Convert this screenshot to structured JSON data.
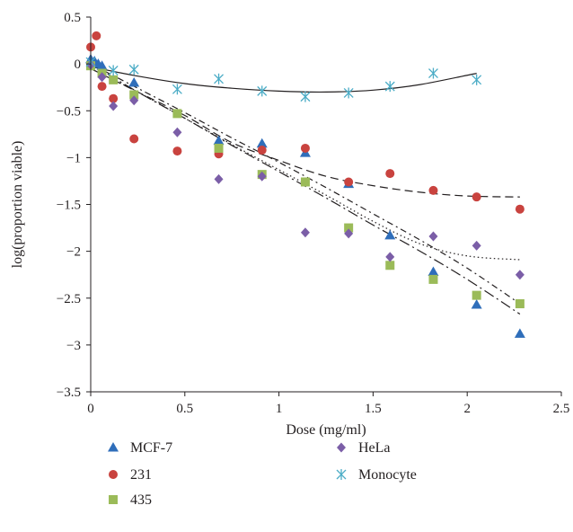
{
  "chart_data": {
    "type": "scatter",
    "title": "",
    "xlabel": "Dose (mg/ml)",
    "ylabel": "log(proportion viable)",
    "xlim": [
      0,
      2.5
    ],
    "ylim": [
      -3.5,
      0.5
    ],
    "xticks": [
      0,
      0.5,
      1,
      1.5,
      2,
      2.5
    ],
    "xtick_labels": [
      "0",
      "0.5",
      "1",
      "1.5",
      "2",
      "2.5"
    ],
    "yticks": [
      0.5,
      0,
      -0.5,
      -1,
      -1.5,
      -2,
      -2.5,
      -3,
      -3.5
    ],
    "ytick_labels": [
      "0.5",
      "0",
      "−0.5",
      "−1",
      "−1.5",
      "−2",
      "−2.5",
      "−3",
      "−3.5"
    ],
    "grid": false,
    "legend_position": "bottom",
    "series": [
      {
        "name": "MCF-7",
        "marker": "triangle",
        "color": "#2f6eba",
        "points": [
          [
            0,
            0.05
          ],
          [
            0.02,
            0.03
          ],
          [
            0.04,
            0.0
          ],
          [
            0.06,
            -0.02
          ],
          [
            0.23,
            -0.2
          ],
          [
            0.68,
            -0.82
          ],
          [
            0.91,
            -0.85
          ],
          [
            1.14,
            -0.95
          ],
          [
            1.37,
            -1.28
          ],
          [
            1.59,
            -1.83
          ],
          [
            1.82,
            -2.22
          ],
          [
            2.05,
            -2.57
          ],
          [
            2.28,
            -2.88
          ]
        ]
      },
      {
        "name": "231",
        "marker": "circle",
        "color": "#c9433f",
        "points": [
          [
            0,
            0.18
          ],
          [
            0.03,
            0.3
          ],
          [
            0.06,
            -0.24
          ],
          [
            0.12,
            -0.37
          ],
          [
            0.23,
            -0.8
          ],
          [
            0.46,
            -0.93
          ],
          [
            0.68,
            -0.96
          ],
          [
            0.91,
            -0.92
          ],
          [
            1.14,
            -0.9
          ],
          [
            1.37,
            -1.26
          ],
          [
            1.59,
            -1.17
          ],
          [
            1.82,
            -1.35
          ],
          [
            2.05,
            -1.42
          ],
          [
            2.28,
            -1.55
          ]
        ]
      },
      {
        "name": "435",
        "marker": "square",
        "color": "#9bbb59",
        "points": [
          [
            0,
            -0.02
          ],
          [
            0.06,
            -0.1
          ],
          [
            0.12,
            -0.17
          ],
          [
            0.23,
            -0.33
          ],
          [
            0.46,
            -0.53
          ],
          [
            0.68,
            -0.9
          ],
          [
            0.91,
            -1.18
          ],
          [
            1.14,
            -1.26
          ],
          [
            1.37,
            -1.75
          ],
          [
            1.59,
            -2.15
          ],
          [
            1.82,
            -2.3
          ],
          [
            2.05,
            -2.47
          ],
          [
            2.28,
            -2.56
          ]
        ]
      },
      {
        "name": "HeLa",
        "marker": "diamond",
        "color": "#7b5ea7",
        "points": [
          [
            0,
            -0.01
          ],
          [
            0.06,
            -0.14
          ],
          [
            0.12,
            -0.45
          ],
          [
            0.23,
            -0.39
          ],
          [
            0.46,
            -0.73
          ],
          [
            0.68,
            -1.23
          ],
          [
            0.91,
            -1.2
          ],
          [
            1.14,
            -1.8
          ],
          [
            1.37,
            -1.81
          ],
          [
            1.59,
            -2.06
          ],
          [
            1.82,
            -1.84
          ],
          [
            2.05,
            -1.94
          ],
          [
            2.28,
            -2.25
          ]
        ]
      },
      {
        "name": "Monocyte",
        "marker": "asterisk",
        "color": "#4bacc6",
        "points": [
          [
            0,
            0.02
          ],
          [
            0.12,
            -0.07
          ],
          [
            0.23,
            -0.06
          ],
          [
            0.46,
            -0.27
          ],
          [
            0.68,
            -0.16
          ],
          [
            0.91,
            -0.29
          ],
          [
            1.14,
            -0.35
          ],
          [
            1.37,
            -0.31
          ],
          [
            1.59,
            -0.24
          ],
          [
            1.82,
            -0.1
          ],
          [
            2.05,
            -0.17
          ]
        ]
      }
    ],
    "trendlines": [
      {
        "series": "MCF-7",
        "style": "dash-dot",
        "points": [
          [
            0,
            0.0
          ],
          [
            0.25,
            -0.26
          ],
          [
            0.5,
            -0.52
          ],
          [
            0.75,
            -0.79
          ],
          [
            1.0,
            -1.05
          ],
          [
            1.25,
            -1.32
          ],
          [
            1.5,
            -1.6
          ],
          [
            1.75,
            -1.88
          ],
          [
            2.0,
            -2.18
          ],
          [
            2.28,
            -2.56
          ]
        ]
      },
      {
        "series": "231",
        "style": "dashed",
        "points": [
          [
            0,
            -0.05
          ],
          [
            0.25,
            -0.3
          ],
          [
            0.5,
            -0.55
          ],
          [
            0.75,
            -0.84
          ],
          [
            1.0,
            -1.03
          ],
          [
            1.25,
            -1.2
          ],
          [
            1.5,
            -1.3
          ],
          [
            1.75,
            -1.37
          ],
          [
            2.0,
            -1.41
          ],
          [
            2.28,
            -1.42
          ]
        ]
      },
      {
        "series": "435",
        "style": "long-dash-dot",
        "points": [
          [
            0,
            0.0
          ],
          [
            0.25,
            -0.3
          ],
          [
            0.5,
            -0.58
          ],
          [
            0.75,
            -0.87
          ],
          [
            1.0,
            -1.15
          ],
          [
            1.25,
            -1.43
          ],
          [
            1.5,
            -1.72
          ],
          [
            1.75,
            -2.0
          ],
          [
            2.0,
            -2.3
          ],
          [
            2.28,
            -2.67
          ]
        ]
      },
      {
        "series": "HeLa",
        "style": "dotted",
        "points": [
          [
            0,
            -0.05
          ],
          [
            0.25,
            -0.3
          ],
          [
            0.5,
            -0.58
          ],
          [
            0.75,
            -0.86
          ],
          [
            1.0,
            -1.13
          ],
          [
            1.25,
            -1.4
          ],
          [
            1.5,
            -1.68
          ],
          [
            1.75,
            -1.92
          ],
          [
            2.0,
            -2.05
          ],
          [
            2.28,
            -2.09
          ]
        ]
      },
      {
        "series": "Monocyte",
        "style": "solid",
        "points": [
          [
            0,
            -0.03
          ],
          [
            0.25,
            -0.13
          ],
          [
            0.5,
            -0.21
          ],
          [
            0.75,
            -0.26
          ],
          [
            1.0,
            -0.29
          ],
          [
            1.25,
            -0.3
          ],
          [
            1.5,
            -0.28
          ],
          [
            1.75,
            -0.22
          ],
          [
            2.05,
            -0.1
          ]
        ]
      }
    ]
  }
}
